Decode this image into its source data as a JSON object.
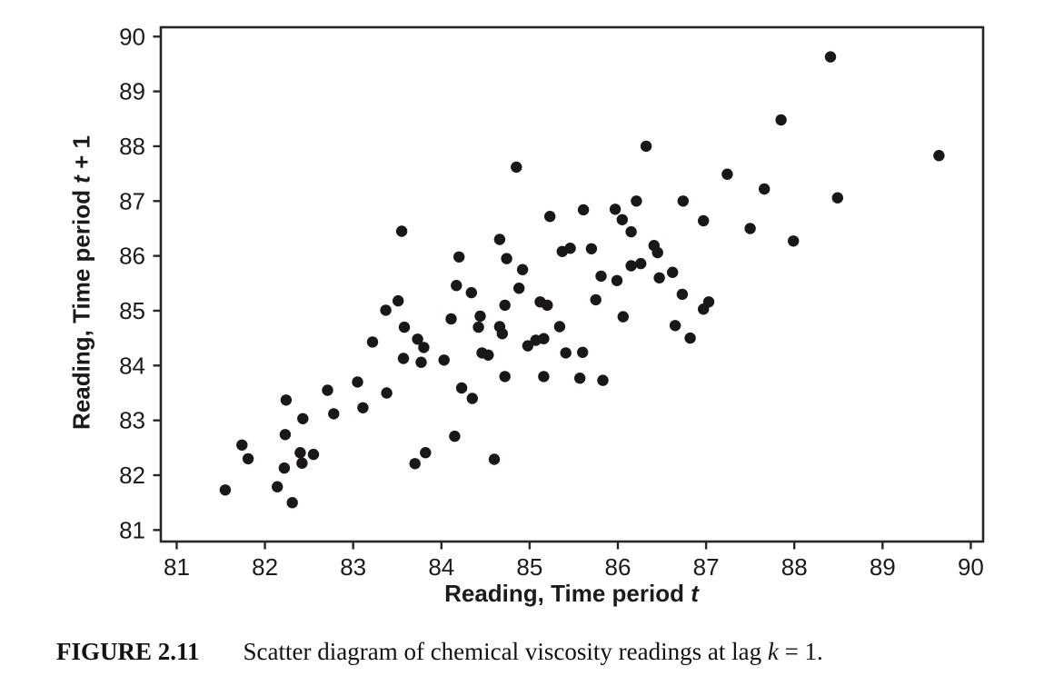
{
  "figure": {
    "caption": {
      "label": "FIGURE 2.11",
      "body_prefix": "Scatter diagram of chemical viscosity readings at lag ",
      "body_var": "k",
      "body_suffix": " = 1."
    }
  },
  "chart_data": {
    "type": "scatter",
    "title": "",
    "xlabel_parts": {
      "prefix": "Reading, Time period ",
      "var": "t",
      "suffix": ""
    },
    "ylabel_parts": {
      "prefix": "Reading, Time period ",
      "var": "t",
      "suffix": " + 1"
    },
    "xlim": [
      80.82,
      90.14
    ],
    "ylim": [
      80.79,
      90.17
    ],
    "x_ticks": [
      81,
      82,
      83,
      84,
      85,
      86,
      87,
      88,
      89,
      90
    ],
    "y_ticks": [
      81,
      82,
      83,
      84,
      85,
      86,
      87,
      88,
      89,
      90
    ],
    "grid": false,
    "legend": "none",
    "marker": {
      "shape": "circle",
      "radius_px": 6.2,
      "color": "#1b1718"
    },
    "frame_color": "#2a2627",
    "points": [
      [
        81.55,
        81.73
      ],
      [
        81.74,
        82.55
      ],
      [
        81.81,
        82.3
      ],
      [
        82.14,
        81.79
      ],
      [
        82.22,
        82.13
      ],
      [
        82.23,
        82.74
      ],
      [
        82.24,
        83.37
      ],
      [
        82.31,
        81.5
      ],
      [
        82.4,
        82.41
      ],
      [
        82.42,
        82.22
      ],
      [
        82.55,
        82.38
      ],
      [
        82.43,
        83.03
      ],
      [
        82.71,
        83.55
      ],
      [
        82.78,
        83.12
      ],
      [
        83.05,
        83.7
      ],
      [
        83.11,
        83.23
      ],
      [
        83.38,
        83.5
      ],
      [
        83.7,
        82.21
      ],
      [
        83.82,
        82.41
      ],
      [
        83.22,
        84.43
      ],
      [
        83.37,
        85.01
      ],
      [
        83.51,
        85.18
      ],
      [
        83.55,
        86.45
      ],
      [
        83.57,
        84.13
      ],
      [
        83.58,
        84.7
      ],
      [
        83.73,
        84.48
      ],
      [
        83.8,
        84.33
      ],
      [
        83.77,
        84.06
      ],
      [
        84.03,
        84.1
      ],
      [
        84.11,
        84.85
      ],
      [
        84.17,
        85.46
      ],
      [
        84.2,
        85.98
      ],
      [
        84.34,
        85.33
      ],
      [
        84.42,
        84.7
      ],
      [
        84.44,
        84.9
      ],
      [
        84.46,
        84.23
      ],
      [
        84.53,
        84.19
      ],
      [
        84.66,
        84.71
      ],
      [
        84.69,
        84.58
      ],
      [
        84.72,
        85.1
      ],
      [
        84.74,
        85.95
      ],
      [
        84.66,
        86.3
      ],
      [
        84.85,
        87.62
      ],
      [
        84.88,
        85.41
      ],
      [
        84.92,
        85.75
      ],
      [
        84.98,
        84.36
      ],
      [
        85.07,
        84.46
      ],
      [
        85.16,
        84.49
      ],
      [
        85.12,
        85.16
      ],
      [
        85.2,
        85.1
      ],
      [
        85.34,
        84.71
      ],
      [
        85.41,
        84.23
      ],
      [
        85.6,
        84.24
      ],
      [
        85.75,
        85.2
      ],
      [
        85.16,
        83.8
      ],
      [
        85.57,
        83.77
      ],
      [
        85.83,
        83.73
      ],
      [
        84.72,
        83.8
      ],
      [
        84.23,
        83.59
      ],
      [
        84.35,
        83.4
      ],
      [
        84.15,
        82.71
      ],
      [
        84.6,
        82.29
      ],
      [
        86.06,
        84.89
      ],
      [
        86.32,
        88.0
      ],
      [
        86.21,
        87.0
      ],
      [
        86.74,
        87.0
      ],
      [
        85.97,
        86.85
      ],
      [
        85.61,
        86.84
      ],
      [
        85.23,
        86.72
      ],
      [
        86.05,
        86.66
      ],
      [
        86.15,
        86.44
      ],
      [
        85.37,
        86.08
      ],
      [
        85.46,
        86.14
      ],
      [
        85.7,
        86.13
      ],
      [
        86.41,
        86.19
      ],
      [
        86.45,
        86.06
      ],
      [
        86.15,
        85.82
      ],
      [
        86.26,
        85.86
      ],
      [
        85.81,
        85.63
      ],
      [
        85.99,
        85.55
      ],
      [
        86.47,
        85.6
      ],
      [
        86.62,
        85.7
      ],
      [
        86.73,
        85.3
      ],
      [
        87.03,
        85.16
      ],
      [
        86.97,
        85.03
      ],
      [
        86.82,
        84.5
      ],
      [
        86.65,
        84.73
      ],
      [
        86.97,
        86.64
      ],
      [
        88.41,
        89.63
      ],
      [
        87.85,
        88.48
      ],
      [
        89.64,
        87.83
      ],
      [
        87.24,
        87.49
      ],
      [
        87.66,
        87.22
      ],
      [
        88.49,
        87.06
      ],
      [
        87.5,
        86.5
      ],
      [
        87.99,
        86.27
      ]
    ]
  }
}
